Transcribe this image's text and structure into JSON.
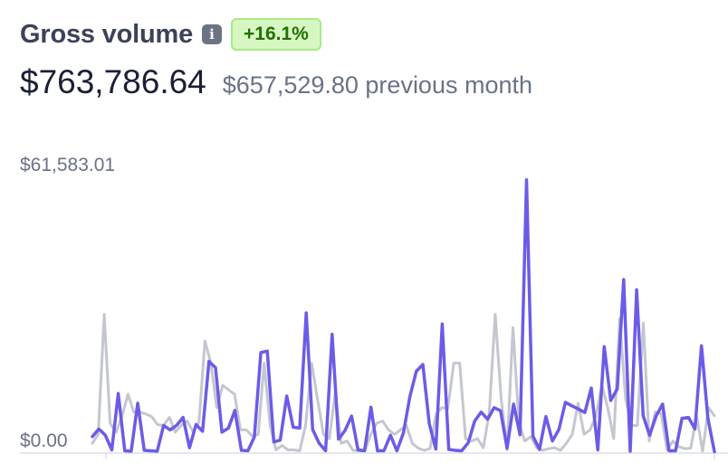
{
  "header": {
    "title": "Gross volume",
    "info_icon": "info-icon",
    "change_badge": "+16.1%"
  },
  "summary": {
    "current_value": "$763,786.64",
    "previous_value": "$657,529.80 previous month"
  },
  "colors": {
    "current_series": "#6b5ce7",
    "previous_series": "#c4c7cf",
    "badge_bg": "#d7f7c2",
    "badge_text": "#217005"
  },
  "chart_data": {
    "type": "line",
    "ylabel_max": "$61,583.01",
    "ylabel_min": "$0.00",
    "ylim": [
      0,
      61583.01
    ],
    "series": [
      {
        "values": [
          3500,
          5200,
          3800,
          500,
          13200,
          300,
          200,
          11000,
          400,
          300,
          200,
          6000,
          5000,
          6000,
          7800,
          1000,
          6200,
          4700,
          20400,
          19000,
          4500,
          5400,
          9400,
          400,
          300,
          3400,
          22400,
          22700,
          2300,
          2700,
          12600,
          5600,
          5400,
          31300,
          5100,
          2000,
          300,
          26500,
          2900,
          4900,
          8100,
          500,
          300,
          10100,
          300,
          300,
          3800,
          300,
          4300,
          12500,
          18200,
          19700,
          6400,
          700,
          28800,
          600,
          400,
          300,
          2100,
          7000,
          9000,
          7400,
          10000,
          9300,
          900,
          10800,
          3900,
          61200,
          3600,
          600,
          8000,
          2500,
          5100,
          11200,
          10400,
          9700,
          8900,
          14400,
          500,
          23700,
          11600,
          14200,
          38800,
          200,
          36500,
          8200,
          3800,
          8100,
          10800,
          300,
          300,
          7600,
          7800,
          5200,
          23900,
          7600,
          100
        ]
      },
      {
        "values": [
          2000,
          4000,
          31000,
          6500,
          4500,
          8000,
          13000,
          9000,
          9000,
          8600,
          8000,
          6200,
          6000,
          7800,
          4500,
          6000,
          7000,
          4600,
          6800,
          25000,
          20000,
          10000,
          15000,
          14000,
          13000,
          5000,
          5000,
          3600,
          4000,
          20000,
          6000,
          500,
          1500,
          500,
          500,
          300,
          6000,
          20000,
          12000,
          4000,
          3000,
          13500,
          2000,
          2500,
          400,
          300,
          300,
          4000,
          6500,
          7000,
          5000,
          4000,
          5000,
          6000,
          2000,
          900,
          400,
          800,
          8500,
          10000,
          9800,
          20000,
          20000,
          3000,
          2500,
          3000,
          1000,
          9000,
          31000,
          12000,
          500,
          28000,
          6600,
          2500,
          3500,
          1000,
          400,
          800,
          1000,
          400,
          2000,
          4000,
          11000,
          4000,
          5000,
          8000,
          15000,
          10000,
          3000,
          30000,
          12000,
          6000,
          6000,
          29000,
          2500,
          9000,
          8700,
          500,
          2500,
          1200,
          800,
          900,
          8200,
          200,
          10000,
          8200
        ]
      }
    ],
    "grid": false,
    "legend": "none"
  }
}
